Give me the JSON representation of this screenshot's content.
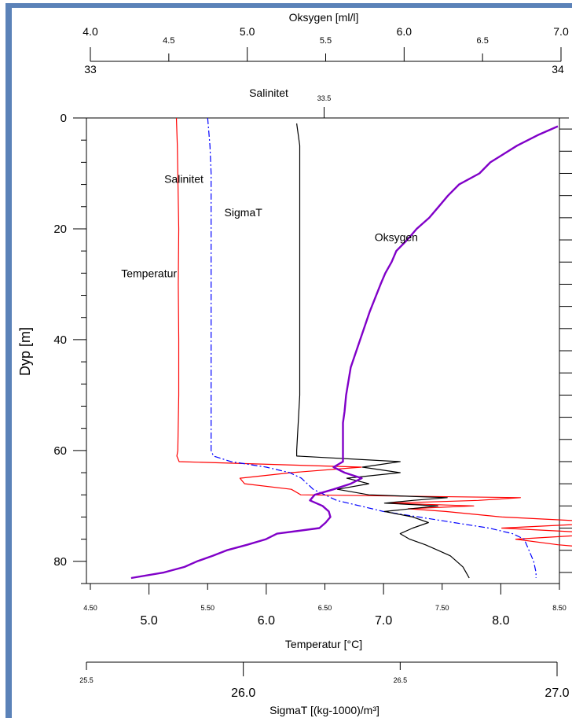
{
  "chart_data": {
    "type": "line",
    "y_axis": {
      "label": "Dyp [m]",
      "ylim": [
        0,
        84
      ],
      "ticks": [
        0,
        20,
        40,
        60,
        80
      ],
      "inverted": true
    },
    "axes": {
      "oksygen": {
        "label": "Oksygen [ml/l]",
        "range": [
          4.0,
          7.0
        ],
        "major_ticks": [
          "4.0",
          "5.0",
          "6.0",
          "7.0"
        ],
        "minor_ticks": [
          "4.5",
          "5.5",
          "6.5"
        ]
      },
      "salinitet": {
        "label": "Salinitet",
        "range": [
          33,
          34
        ],
        "major_ticks": [
          "33",
          "34"
        ],
        "minor_ticks": [
          "33.5"
        ]
      },
      "temperatur": {
        "label": "Temperatur [°C]",
        "range": [
          4.5,
          8.5
        ],
        "major_ticks": [
          "5.0",
          "6.0",
          "7.0",
          "8.0"
        ],
        "minor_ticks": [
          "4.50",
          "5.50",
          "6.50",
          "7.50",
          "8.50"
        ]
      },
      "sigmat": {
        "label": "SigmaT [(kg-1000)/m³]",
        "range": [
          25.5,
          27.0
        ],
        "major_ticks": [
          "26.0",
          "27.0"
        ],
        "minor_ticks": [
          "25.5",
          "26.5"
        ]
      }
    },
    "series": [
      {
        "name": "Salinitet",
        "axis": "salinitet",
        "color": "#ff0000",
        "points": [
          [
            0,
            33.184
          ],
          [
            5,
            33.186
          ],
          [
            10,
            33.187
          ],
          [
            20,
            33.189
          ],
          [
            30,
            33.188
          ],
          [
            40,
            33.189
          ],
          [
            50,
            33.189
          ],
          [
            60,
            33.187
          ],
          [
            61,
            33.185
          ],
          [
            62,
            33.19
          ],
          [
            63,
            33.58
          ],
          [
            64,
            33.43
          ],
          [
            65,
            33.32
          ],
          [
            66,
            33.33
          ],
          [
            67,
            33.43
          ],
          [
            68,
            33.45
          ],
          [
            68.5,
            33.92
          ],
          [
            69,
            33.83
          ],
          [
            69.5,
            33.64
          ],
          [
            70,
            33.82
          ],
          [
            70.5,
            33.68
          ],
          [
            71,
            33.76
          ],
          [
            72,
            33.88
          ],
          [
            73,
            34.12
          ],
          [
            74,
            33.88
          ],
          [
            75,
            34.11
          ],
          [
            76,
            33.91
          ],
          [
            77,
            34.0
          ],
          [
            78,
            34.14
          ],
          [
            79,
            34.1
          ],
          [
            80,
            34.23
          ],
          [
            81,
            34.29
          ],
          [
            82,
            34.33
          ],
          [
            83,
            34.34
          ]
        ]
      },
      {
        "name": "Temperatur",
        "axis": "temperatur",
        "color": "#0000ff",
        "points": [
          [
            0,
            5.5
          ],
          [
            5,
            5.52
          ],
          [
            10,
            5.53
          ],
          [
            20,
            5.53
          ],
          [
            30,
            5.53
          ],
          [
            40,
            5.53
          ],
          [
            50,
            5.53
          ],
          [
            60,
            5.53
          ],
          [
            61,
            5.55
          ],
          [
            62,
            5.7
          ],
          [
            63,
            6.0
          ],
          [
            64,
            6.2
          ],
          [
            65,
            6.3
          ],
          [
            66,
            6.35
          ],
          [
            67,
            6.4
          ],
          [
            68,
            6.5
          ],
          [
            69,
            6.6
          ],
          [
            70,
            6.8
          ],
          [
            71,
            7.0
          ],
          [
            72,
            7.3
          ],
          [
            73,
            7.6
          ],
          [
            74,
            7.9
          ],
          [
            75,
            8.1
          ],
          [
            76,
            8.2
          ],
          [
            77,
            8.22
          ],
          [
            78,
            8.24
          ],
          [
            79,
            8.26
          ],
          [
            80,
            8.28
          ],
          [
            81,
            8.29
          ],
          [
            82,
            8.3
          ],
          [
            83,
            8.3
          ]
        ]
      },
      {
        "name": "SigmaT",
        "axis": "sigmat",
        "color": "#000000",
        "points": [
          [
            1,
            26.17
          ],
          [
            5,
            26.18
          ],
          [
            10,
            26.18
          ],
          [
            20,
            26.18
          ],
          [
            30,
            26.18
          ],
          [
            40,
            26.18
          ],
          [
            50,
            26.18
          ],
          [
            60,
            26.17
          ],
          [
            61,
            26.17
          ],
          [
            62,
            26.5
          ],
          [
            63,
            26.38
          ],
          [
            64,
            26.5
          ],
          [
            65,
            26.33
          ],
          [
            66,
            26.4
          ],
          [
            67,
            26.3
          ],
          [
            68,
            26.4
          ],
          [
            68.5,
            26.65
          ],
          [
            69,
            26.54
          ],
          [
            69.5,
            26.45
          ],
          [
            70,
            26.62
          ],
          [
            71,
            26.45
          ],
          [
            72,
            26.54
          ],
          [
            73,
            26.59
          ],
          [
            74,
            26.54
          ],
          [
            75,
            26.5
          ],
          [
            76,
            26.53
          ],
          [
            77,
            26.58
          ],
          [
            78,
            26.62
          ],
          [
            79,
            26.66
          ],
          [
            80,
            26.68
          ],
          [
            81,
            26.7
          ],
          [
            82,
            26.71
          ],
          [
            83,
            26.72
          ]
        ]
      },
      {
        "name": "Oksygen",
        "axis": "oksygen",
        "color": "#8000c8",
        "points": [
          [
            1.5,
            6.98
          ],
          [
            3,
            6.86
          ],
          [
            5,
            6.72
          ],
          [
            8,
            6.55
          ],
          [
            10,
            6.48
          ],
          [
            12,
            6.35
          ],
          [
            14,
            6.28
          ],
          [
            16,
            6.22
          ],
          [
            18,
            6.16
          ],
          [
            20,
            6.08
          ],
          [
            22,
            6.02
          ],
          [
            24,
            5.95
          ],
          [
            26,
            5.92
          ],
          [
            28,
            5.88
          ],
          [
            30,
            5.85
          ],
          [
            35,
            5.78
          ],
          [
            40,
            5.72
          ],
          [
            45,
            5.66
          ],
          [
            50,
            5.63
          ],
          [
            53,
            5.62
          ],
          [
            55,
            5.61
          ],
          [
            58,
            5.61
          ],
          [
            60,
            5.61
          ],
          [
            62,
            5.61
          ],
          [
            63,
            5.55
          ],
          [
            64,
            5.62
          ],
          [
            65,
            5.73
          ],
          [
            66,
            5.66
          ],
          [
            67,
            5.55
          ],
          [
            68,
            5.43
          ],
          [
            69,
            5.4
          ],
          [
            70,
            5.48
          ],
          [
            71,
            5.52
          ],
          [
            72,
            5.53
          ],
          [
            73,
            5.5
          ],
          [
            74,
            5.46
          ],
          [
            75,
            5.19
          ],
          [
            76,
            5.12
          ],
          [
            77,
            5.0
          ],
          [
            78,
            4.87
          ],
          [
            79,
            4.78
          ],
          [
            80,
            4.68
          ],
          [
            81,
            4.6
          ],
          [
            82,
            4.47
          ],
          [
            83,
            4.26
          ]
        ]
      }
    ],
    "labels": [
      {
        "text": "Salinitet",
        "axis": "salinitet",
        "x": 33.2,
        "depth": 11
      },
      {
        "text": "SigmaT",
        "axis": "sigmat",
        "x": 26.0,
        "depth": 17
      },
      {
        "text": "Oksygen",
        "axis": "oksygen",
        "x": 5.95,
        "depth": 21.5
      },
      {
        "text": "Temperatur",
        "axis": "temperatur",
        "x": 5.0,
        "depth": 28
      }
    ]
  }
}
